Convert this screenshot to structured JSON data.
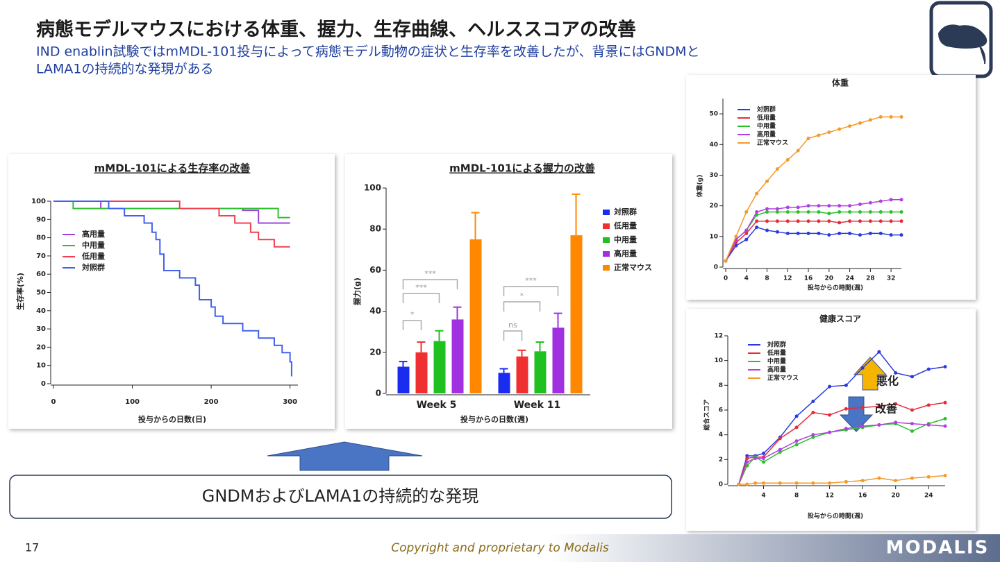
{
  "header": {
    "title": "病態モデルマウスにおける体重、握力、生存曲線、ヘルススコアの改善",
    "subtitle_lines": [
      "IND enablin試験ではmMDL-101投与によって病態モデル動物の症状と生存率を改善したが、背景にはGNDMと",
      "LAMA1の持続的な発現がある"
    ]
  },
  "banner": "GNDMおよびLAMA1の持続的な発現",
  "footer": {
    "page": "17",
    "copyright": "Copyright and proprietary to Modalis",
    "logo": "MODALIS"
  },
  "chart_data": [
    {
      "type": "line",
      "step": true,
      "title": "mMDL-101による生存率の改善",
      "ylabel": "生存率(%)",
      "xlabel": "投与からの日数(日)",
      "xlim": [
        0,
        310
      ],
      "xticks": [
        0,
        100,
        200,
        300
      ],
      "ylim": [
        0,
        100
      ],
      "yticks": [
        0,
        10,
        20,
        30,
        40,
        50,
        60,
        70,
        80,
        90,
        100
      ],
      "series": [
        {
          "name": "高用量",
          "color": "#a040e0",
          "x": [
            0,
            60,
            240,
            260,
            300
          ],
          "values": [
            100,
            96,
            95,
            88,
            88
          ]
        },
        {
          "name": "中用量",
          "color": "#30c030",
          "x": [
            0,
            25,
            285,
            300
          ],
          "values": [
            100,
            96,
            91,
            91
          ]
        },
        {
          "name": "低用量",
          "color": "#f04050",
          "x": [
            0,
            160,
            210,
            230,
            250,
            260,
            280,
            300
          ],
          "values": [
            100,
            96,
            92,
            88,
            83,
            79,
            75,
            75
          ]
        },
        {
          "name": "対照群",
          "color": "#4060f0",
          "x": [
            0,
            70,
            90,
            115,
            125,
            130,
            135,
            140,
            160,
            180,
            185,
            200,
            205,
            215,
            240,
            260,
            280,
            290,
            300,
            302
          ],
          "values": [
            100,
            96,
            92,
            88,
            83,
            79,
            71,
            62,
            58,
            54,
            46,
            42,
            37,
            33,
            29,
            25,
            21,
            17,
            12,
            4
          ]
        }
      ]
    },
    {
      "type": "bar",
      "title": "mMDL-101による握力の改善",
      "ylabel": "握力(g)",
      "xlabel": "投与からの日数(週)",
      "categories": [
        "Week 5",
        "Week 11"
      ],
      "ylim": [
        0,
        100
      ],
      "yticks": [
        0,
        20,
        40,
        60,
        80,
        100
      ],
      "series": [
        {
          "name": "対照群",
          "color": "#1a2cf0",
          "values": [
            13,
            10
          ],
          "errors": [
            2.5,
            2
          ]
        },
        {
          "name": "低用量",
          "color": "#f03030",
          "values": [
            20,
            18
          ],
          "errors": [
            5,
            3
          ]
        },
        {
          "name": "中用量",
          "color": "#20c020",
          "values": [
            25.5,
            20.5
          ],
          "errors": [
            5,
            4.5
          ]
        },
        {
          "name": "高用量",
          "color": "#a030e0",
          "values": [
            36,
            32
          ],
          "errors": [
            6,
            7
          ]
        },
        {
          "name": "正常マウス",
          "color": "#ff8800",
          "values": [
            75,
            77
          ],
          "errors": [
            13,
            20
          ]
        }
      ],
      "annotations": [
        "***",
        "***",
        "*",
        "***",
        "*",
        "ns"
      ]
    },
    {
      "type": "line",
      "title": "体重",
      "ylabel": "体重(g)",
      "xlabel": "投与からの時間(週)",
      "xlim": [
        0,
        34
      ],
      "xticks": [
        0,
        4,
        8,
        12,
        16,
        20,
        24,
        28,
        32
      ],
      "ylim": [
        0,
        55
      ],
      "yticks": [
        0,
        10,
        20,
        30,
        40,
        50
      ],
      "x": [
        0,
        2,
        4,
        6,
        8,
        10,
        12,
        14,
        16,
        18,
        20,
        22,
        24,
        26,
        28,
        30,
        32,
        34
      ],
      "series": [
        {
          "name": "対照群",
          "color": "#2a3ae0",
          "values": [
            2,
            7,
            9,
            13,
            12,
            11.5,
            11,
            11,
            11,
            11,
            10.5,
            11,
            11,
            10.5,
            11,
            11,
            10.5,
            10.5
          ]
        },
        {
          "name": "低用量",
          "color": "#e82a3a",
          "values": [
            2,
            8,
            11,
            15,
            15,
            15,
            15,
            15,
            15,
            15,
            15,
            14.5,
            15,
            15,
            15,
            15,
            15,
            15
          ]
        },
        {
          "name": "中用量",
          "color": "#2ac02a",
          "values": [
            2,
            9,
            12,
            17,
            18,
            18,
            18,
            18,
            18,
            18,
            17.5,
            18,
            18,
            18,
            18,
            18,
            18,
            18
          ]
        },
        {
          "name": "高用量",
          "color": "#b040e0",
          "values": [
            2,
            9,
            12,
            18,
            19,
            19,
            19.5,
            19.5,
            20,
            20,
            20,
            20,
            20,
            20.5,
            21,
            21.5,
            22,
            22
          ]
        },
        {
          "name": "正常マウス",
          "color": "#f39a2a",
          "values": [
            2,
            10,
            18,
            24,
            28,
            32,
            35,
            38,
            42,
            43,
            44,
            45,
            46,
            47,
            48,
            49,
            49,
            49
          ]
        }
      ]
    },
    {
      "type": "line",
      "title": "健康スコア",
      "ylabel": "総合スコア",
      "xlabel": "投与からの時間(週)",
      "xlim": [
        0,
        26
      ],
      "xticks": [
        4,
        8,
        12,
        16,
        20,
        24
      ],
      "ylim": [
        0,
        12
      ],
      "yticks": [
        0,
        2,
        4,
        6,
        8,
        10,
        12
      ],
      "x": [
        1,
        2,
        3,
        4,
        6,
        8,
        10,
        12,
        14,
        16,
        18,
        20,
        22,
        24,
        26
      ],
      "series": [
        {
          "name": "対照群",
          "color": "#2a3ae0",
          "values": [
            0,
            2.3,
            2.3,
            2.5,
            3.8,
            5.5,
            6.7,
            7.9,
            8,
            9.4,
            10.7,
            9,
            8.7,
            9.3,
            9.5
          ]
        },
        {
          "name": "低用量",
          "color": "#e82a3a",
          "values": [
            0,
            2.1,
            2.2,
            2.2,
            3.7,
            4.6,
            5.8,
            5.6,
            6.1,
            6.2,
            6.3,
            6.5,
            6,
            6.4,
            6.6
          ]
        },
        {
          "name": "中用量",
          "color": "#2ac02a",
          "values": [
            0,
            1.5,
            2.2,
            1.8,
            2.6,
            3.2,
            3.8,
            4.2,
            4.4,
            4.6,
            4.8,
            4.9,
            4.3,
            4.9,
            5.3
          ]
        },
        {
          "name": "高用量",
          "color": "#b040e0",
          "values": [
            0,
            1.8,
            2.1,
            2.1,
            2.8,
            3.5,
            4,
            4.2,
            4.5,
            4.7,
            4.8,
            5,
            4.9,
            4.8,
            4.7
          ]
        },
        {
          "name": "正常マウス",
          "color": "#f39a2a",
          "values": [
            0,
            0,
            0.1,
            0.1,
            0.1,
            0.1,
            0.1,
            0.1,
            0.2,
            0.3,
            0.5,
            0.3,
            0.5,
            0.6,
            0.7
          ]
        }
      ],
      "annotations": [
        "悪化",
        "改善"
      ]
    }
  ]
}
